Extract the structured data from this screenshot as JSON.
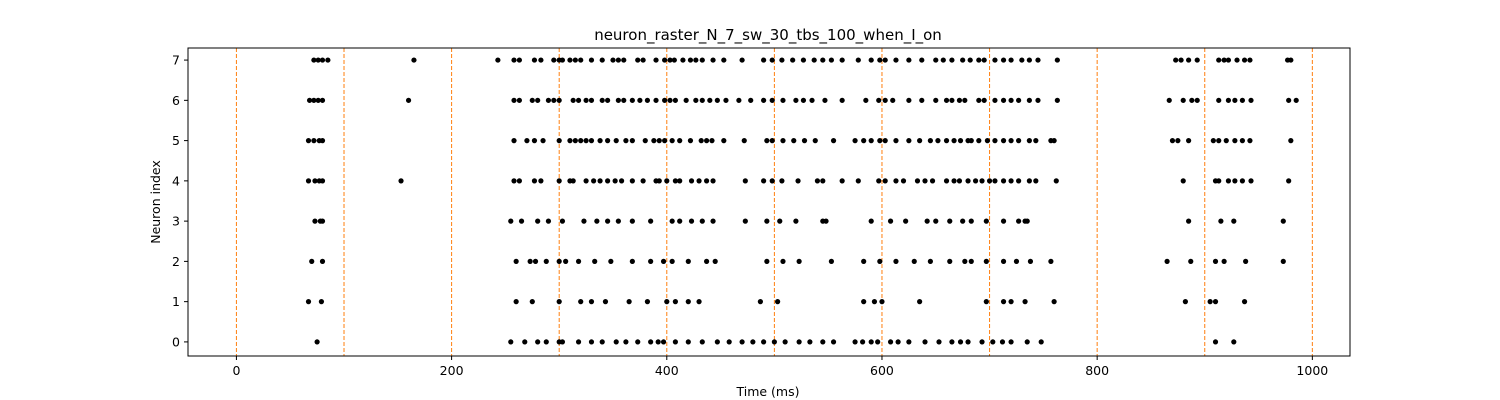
{
  "chart_data": {
    "type": "scatter",
    "title": "neuron_raster_N_7_sw_30_tbs_100_when_I_on",
    "xlabel": "Time (ms)",
    "ylabel": "Neuron index",
    "xlim": [
      -45,
      1035
    ],
    "ylim": [
      -0.35,
      7.3
    ],
    "x_ticks": [
      0,
      200,
      400,
      600,
      800,
      1000
    ],
    "y_ticks": [
      0,
      1,
      2,
      3,
      4,
      5,
      6,
      7
    ],
    "grid": false,
    "legend": "none",
    "marker_color": "#000000",
    "vline_color": "#ff7f0e",
    "vlines": [
      0,
      100,
      200,
      300,
      400,
      500,
      600,
      700,
      800,
      900,
      1000
    ],
    "series": [
      {
        "neuron": 0,
        "x": [
          75,
          255,
          268,
          280,
          288,
          300,
          303,
          318,
          330,
          340,
          353,
          362,
          373,
          385,
          392,
          397,
          408,
          420,
          433,
          447,
          458,
          470,
          480,
          490,
          500,
          510,
          523,
          533,
          545,
          555,
          575,
          582,
          590,
          596,
          608,
          615,
          625,
          640,
          653,
          665,
          673,
          680,
          693,
          703,
          712,
          720,
          735,
          748,
          910,
          927
        ]
      },
      {
        "neuron": 1,
        "x": [
          67,
          79,
          260,
          275,
          300,
          320,
          330,
          343,
          365,
          382,
          400,
          408,
          420,
          430,
          487,
          503,
          583,
          593,
          600,
          635,
          697,
          713,
          720,
          733,
          760,
          882,
          905,
          910,
          937
        ]
      },
      {
        "neuron": 2,
        "x": [
          70,
          80,
          260,
          273,
          278,
          288,
          300,
          306,
          318,
          333,
          348,
          368,
          385,
          397,
          405,
          420,
          437,
          445,
          493,
          508,
          523,
          553,
          583,
          598,
          613,
          630,
          645,
          663,
          677,
          683,
          697,
          713,
          725,
          738,
          757,
          865,
          887,
          910,
          918,
          938,
          973
        ]
      },
      {
        "neuron": 3,
        "x": [
          73,
          78,
          80,
          255,
          265,
          280,
          290,
          303,
          323,
          335,
          345,
          355,
          368,
          385,
          405,
          412,
          423,
          433,
          443,
          473,
          493,
          505,
          520,
          545,
          548,
          590,
          608,
          622,
          642,
          650,
          663,
          675,
          683,
          697,
          713,
          727,
          733,
          735,
          885,
          915,
          927,
          973
        ]
      },
      {
        "neuron": 4,
        "x": [
          67,
          73,
          77,
          80,
          153,
          258,
          263,
          277,
          283,
          300,
          310,
          313,
          325,
          332,
          338,
          345,
          352,
          358,
          368,
          378,
          390,
          393,
          400,
          408,
          412,
          423,
          430,
          437,
          443,
          473,
          490,
          498,
          507,
          522,
          540,
          545,
          563,
          578,
          597,
          603,
          613,
          620,
          633,
          640,
          647,
          660,
          667,
          672,
          680,
          687,
          693,
          700,
          705,
          713,
          720,
          727,
          737,
          743,
          762,
          880,
          910,
          913,
          922,
          928,
          935,
          943,
          978
        ]
      },
      {
        "neuron": 5,
        "x": [
          67,
          72,
          77,
          80,
          258,
          270,
          277,
          285,
          300,
          310,
          315,
          320,
          325,
          330,
          338,
          345,
          353,
          362,
          368,
          380,
          388,
          393,
          398,
          405,
          412,
          422,
          432,
          437,
          442,
          453,
          472,
          493,
          498,
          508,
          518,
          528,
          538,
          555,
          575,
          583,
          590,
          598,
          603,
          613,
          625,
          635,
          645,
          652,
          660,
          667,
          673,
          680,
          683,
          690,
          698,
          705,
          713,
          720,
          727,
          737,
          743,
          757,
          760,
          870,
          875,
          885,
          908,
          913,
          920,
          928,
          935,
          942,
          980
        ]
      },
      {
        "neuron": 6,
        "x": [
          68,
          72,
          76,
          80,
          160,
          258,
          263,
          275,
          280,
          290,
          295,
          300,
          313,
          318,
          325,
          330,
          340,
          345,
          355,
          360,
          368,
          375,
          382,
          390,
          398,
          403,
          408,
          418,
          427,
          433,
          440,
          447,
          455,
          467,
          478,
          490,
          498,
          508,
          520,
          527,
          535,
          547,
          563,
          585,
          597,
          603,
          610,
          625,
          637,
          650,
          660,
          665,
          672,
          677,
          690,
          695,
          705,
          713,
          720,
          727,
          737,
          745,
          763,
          867,
          880,
          888,
          893,
          913,
          922,
          928,
          935,
          943,
          978,
          985
        ]
      },
      {
        "neuron": 7,
        "x": [
          72,
          76,
          80,
          85,
          165,
          243,
          258,
          263,
          277,
          283,
          295,
          300,
          303,
          310,
          315,
          320,
          330,
          340,
          350,
          355,
          360,
          373,
          378,
          390,
          398,
          403,
          407,
          415,
          422,
          427,
          433,
          443,
          453,
          470,
          490,
          498,
          507,
          517,
          527,
          537,
          545,
          553,
          563,
          578,
          590,
          598,
          603,
          613,
          625,
          637,
          650,
          657,
          665,
          675,
          682,
          690,
          695,
          705,
          713,
          720,
          730,
          737,
          745,
          763,
          873,
          878,
          885,
          893,
          913,
          918,
          922,
          930,
          937,
          942,
          977,
          980
        ]
      }
    ]
  }
}
